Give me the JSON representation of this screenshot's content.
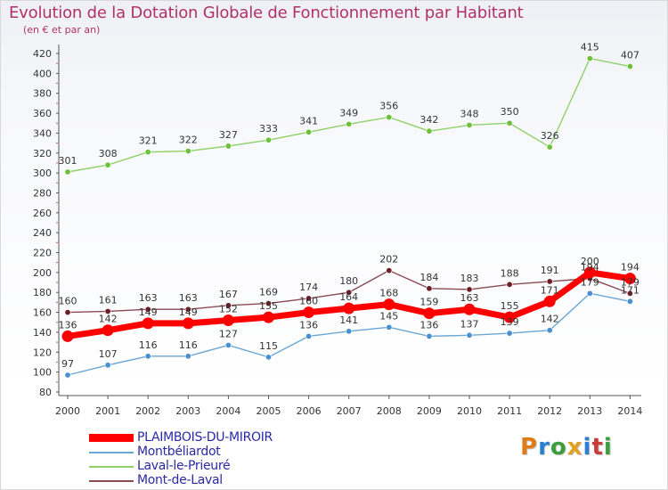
{
  "header": {
    "title": "Evolution de la Dotation Globale de Fonctionnement par Habitant",
    "subtitle": "(en € et par an)"
  },
  "brand": {
    "text": "Proxiti",
    "letters": [
      "P",
      "r",
      "o",
      "x",
      "i",
      "t",
      "i"
    ],
    "colors": [
      "#e07b1a",
      "#2a7fd4",
      "#3c9e3c",
      "#e0a020",
      "#2a7fd4",
      "#c83c3c",
      "#3c9e3c"
    ]
  },
  "chart_data": {
    "type": "line",
    "title": "Evolution de la Dotation Globale de Fonctionnement par Habitant",
    "subtitle": "(en € et par an)",
    "xlabel": "",
    "ylabel": "",
    "ylim": [
      80,
      420
    ],
    "yticks": [
      80,
      100,
      120,
      140,
      160,
      180,
      200,
      220,
      240,
      260,
      280,
      300,
      320,
      340,
      360,
      380,
      400,
      420
    ],
    "grid": false,
    "legend_position": "bottom-left",
    "categories": [
      "2000",
      "2001",
      "2002",
      "2003",
      "2004",
      "2005",
      "2006",
      "2007",
      "2008",
      "2009",
      "2010",
      "2011",
      "2012",
      "2013",
      "2014"
    ],
    "series": [
      {
        "name": "Laval-le-Prieuré",
        "color": "#8fd16a",
        "marker": "#6cc03a",
        "values": [
          301,
          308,
          321,
          322,
          327,
          333,
          341,
          349,
          356,
          342,
          348,
          350,
          326,
          415,
          407
        ],
        "labels": [
          "301",
          "308",
          "321",
          "322",
          "327",
          "333",
          "341",
          "349",
          "356",
          "342",
          "348",
          "350",
          "326",
          "415",
          "407"
        ]
      },
      {
        "name": "Mont-de-Laval",
        "color": "#8a4a52",
        "marker": "#6e1e26",
        "values": [
          160,
          161,
          163,
          163,
          167,
          169,
          174,
          180,
          202,
          184,
          183,
          188,
          191,
          194,
          179
        ],
        "labels": [
          "160",
          "161",
          "163",
          "163",
          "167",
          "169",
          "174",
          "180",
          "202",
          "184",
          "183",
          "188",
          "191",
          "194",
          "179"
        ]
      },
      {
        "name": "Montbéliardot",
        "color": "#6aa6d6",
        "marker": "#4a90d0",
        "values": [
          97,
          107,
          116,
          116,
          127,
          115,
          136,
          141,
          145,
          136,
          137,
          139,
          142,
          179,
          171
        ],
        "labels": [
          "97",
          "107",
          "116",
          "116",
          "127",
          "115",
          "136",
          "141",
          "145",
          "136",
          "137",
          "139",
          "142",
          "179",
          "171"
        ]
      },
      {
        "name": "PLAIMBOIS-DU-MIROIR",
        "color": "#ff0000",
        "marker": "#ff0000",
        "values": [
          136,
          142,
          149,
          149,
          152,
          155,
          160,
          164,
          168,
          159,
          163,
          155,
          171,
          200,
          194
        ],
        "labels": [
          "136",
          "142",
          "149",
          "149",
          "152",
          "155",
          "160",
          "164",
          "168",
          "159",
          "163",
          "155",
          "171",
          "200",
          "194"
        ]
      }
    ]
  },
  "legend": {
    "items": [
      {
        "label": "PLAIMBOIS-DU-MIROIR",
        "color": "#ff0000"
      },
      {
        "label": "Montbéliardot",
        "color": "#6aa6d6"
      },
      {
        "label": "Laval-le-Prieuré",
        "color": "#8fd16a"
      },
      {
        "label": "Mont-de-Laval",
        "color": "#8a4a52"
      }
    ]
  }
}
